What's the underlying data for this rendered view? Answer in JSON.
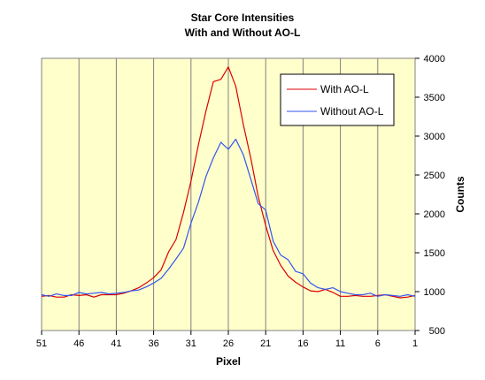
{
  "chart_data": {
    "type": "line",
    "title_lines": [
      "Star Core Intensities",
      "With and Without AO-L"
    ],
    "xlabel": "Pixel",
    "ylabel": "Counts",
    "xlim": [
      51,
      1
    ],
    "ylim": [
      500,
      4000
    ],
    "x_ticks": [
      51,
      46,
      41,
      36,
      31,
      26,
      21,
      16,
      11,
      6,
      1
    ],
    "y_ticks": [
      500,
      1000,
      1500,
      2000,
      2500,
      3000,
      3500,
      4000
    ],
    "grid": "vertical",
    "legend_position": "top-right",
    "background_color": "#FFFFCC",
    "series": [
      {
        "name": "With AO-L",
        "color": "#DD0000",
        "x": [
          51,
          50,
          49,
          48,
          47,
          46,
          45,
          44,
          43,
          42,
          41,
          40,
          39,
          38,
          37,
          36,
          35,
          34,
          33,
          32,
          31,
          30,
          29,
          28,
          27,
          26,
          25,
          24,
          23,
          22,
          21,
          20,
          19,
          18,
          17,
          16,
          15,
          14,
          13,
          12,
          11,
          10,
          9,
          8,
          7,
          6,
          5,
          4,
          3,
          2,
          1
        ],
        "y": [
          940,
          950,
          930,
          930,
          960,
          950,
          960,
          930,
          960,
          960,
          960,
          980,
          1010,
          1050,
          1110,
          1180,
          1280,
          1510,
          1670,
          2020,
          2420,
          2890,
          3320,
          3700,
          3730,
          3890,
          3640,
          3150,
          2720,
          2220,
          1850,
          1530,
          1340,
          1200,
          1120,
          1060,
          1010,
          1000,
          1030,
          990,
          940,
          940,
          950,
          940,
          940,
          950,
          960,
          940,
          920,
          930,
          950
        ]
      },
      {
        "name": "Without AO-L",
        "color": "#3355EE",
        "x": [
          51,
          50,
          49,
          48,
          47,
          46,
          45,
          44,
          43,
          42,
          41,
          40,
          39,
          38,
          37,
          36,
          35,
          34,
          33,
          32,
          31,
          30,
          29,
          28,
          27,
          26,
          25,
          24,
          23,
          22,
          21,
          20,
          19,
          18,
          17,
          16,
          15,
          14,
          13,
          12,
          11,
          10,
          9,
          8,
          7,
          6,
          5,
          4,
          3,
          2,
          1
        ],
        "y": [
          960,
          940,
          970,
          950,
          950,
          990,
          970,
          980,
          990,
          970,
          980,
          990,
          1010,
          1020,
          1060,
          1110,
          1170,
          1290,
          1420,
          1560,
          1880,
          2150,
          2480,
          2720,
          2920,
          2830,
          2960,
          2760,
          2450,
          2130,
          2050,
          1650,
          1470,
          1410,
          1260,
          1230,
          1110,
          1050,
          1030,
          1050,
          1000,
          980,
          960,
          960,
          980,
          940,
          960,
          950,
          940,
          960,
          940
        ]
      }
    ]
  }
}
